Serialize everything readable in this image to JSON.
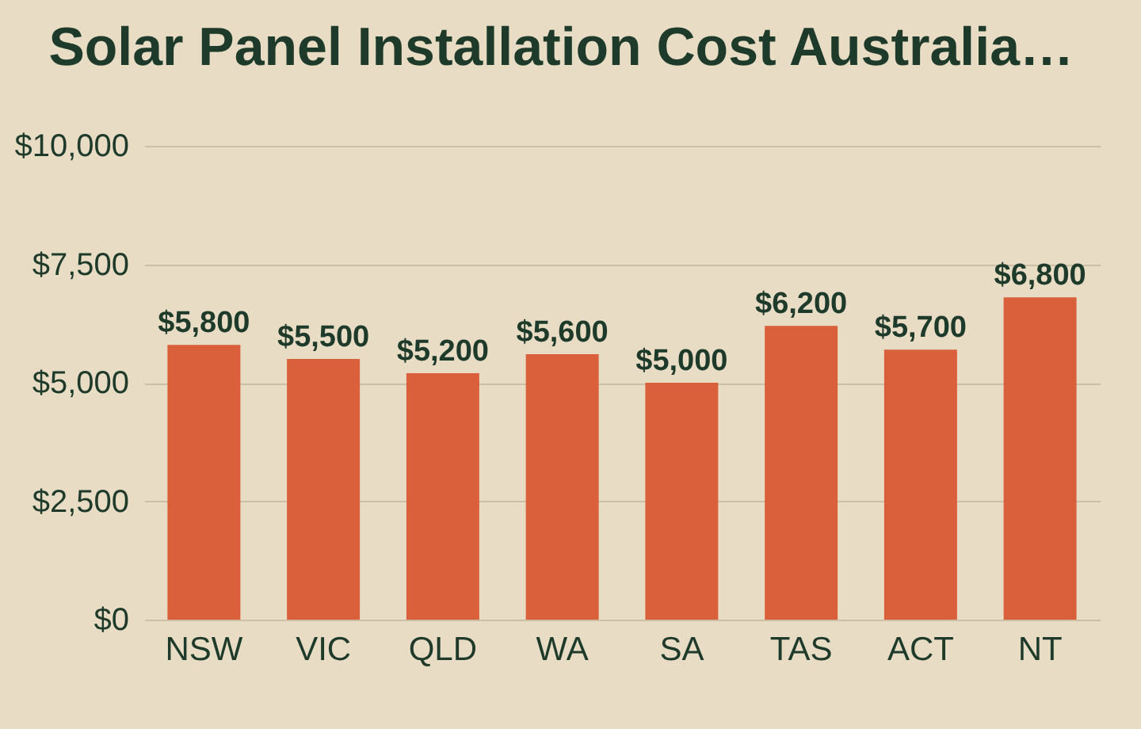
{
  "chart_data": {
    "type": "bar",
    "title": "Solar Panel Installation Cost Australia…",
    "categories": [
      "NSW",
      "VIC",
      "QLD",
      "WA",
      "SA",
      "TAS",
      "ACT",
      "NT"
    ],
    "values": [
      5800,
      5500,
      5200,
      5600,
      5000,
      6200,
      5700,
      6800
    ],
    "value_labels": [
      "$5,800",
      "$5,500",
      "$5,200",
      "$5,600",
      "$5,000",
      "$6,200",
      "$5,700",
      "$6,800"
    ],
    "color": "#d9603b",
    "ylim": [
      0,
      10000
    ],
    "yticks": [
      {
        "value": 0,
        "label": "$0"
      },
      {
        "value": 2500,
        "label": "$2,500"
      },
      {
        "value": 5000,
        "label": "$5,000"
      },
      {
        "value": 7500,
        "label": "$7,500"
      },
      {
        "value": 10000,
        "label": "$10,000"
      }
    ],
    "grid": "y"
  }
}
